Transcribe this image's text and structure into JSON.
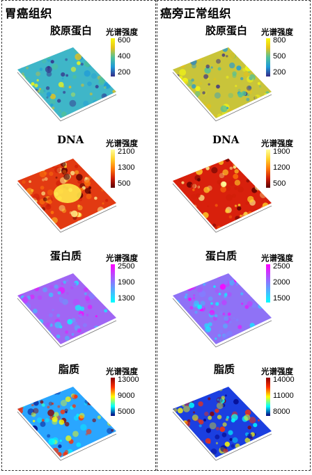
{
  "columns": [
    {
      "title": "胃癌组织",
      "panels": [
        {
          "title": "胶原蛋白",
          "cb_title": "光谱强度",
          "ticks": [
            "600",
            "400",
            "200"
          ],
          "colormap": "parula",
          "base": "#3fb6c8"
        },
        {
          "title": "DNA",
          "cb_title": "光谱强度",
          "ticks": [
            "2100",
            "1300",
            "500"
          ],
          "colormap": "hot",
          "base": "#e23a12"
        },
        {
          "title": "蛋白质",
          "cb_title": "光谱强度",
          "ticks": [
            "2500",
            "1900",
            "1300"
          ],
          "colormap": "cool",
          "base": "#a066f4"
        },
        {
          "title": "脂质",
          "cb_title": "光谱强度",
          "ticks": [
            "13000",
            "9000",
            "5000"
          ],
          "colormap": "jet",
          "base": "#2aa6ff"
        }
      ]
    },
    {
      "title": "癌旁正常组织",
      "panels": [
        {
          "title": "胶原蛋白",
          "cb_title": "光谱强度",
          "ticks": [
            "800",
            "500",
            "200"
          ],
          "colormap": "parula",
          "base": "#c9c43a"
        },
        {
          "title": "DNA",
          "cb_title": "光谱强度",
          "ticks": [
            "1900",
            "1200",
            "500"
          ],
          "colormap": "hot",
          "base": "#d8200c"
        },
        {
          "title": "蛋白质",
          "cb_title": "光谱强度",
          "ticks": [
            "2500",
            "2000",
            "1500"
          ],
          "colormap": "cool",
          "base": "#8f72f6"
        },
        {
          "title": "脂质",
          "cb_title": "光谱强度",
          "ticks": [
            "14000",
            "11000",
            "8000"
          ],
          "colormap": "jet",
          "base": "#1b3fe0"
        }
      ]
    }
  ]
}
